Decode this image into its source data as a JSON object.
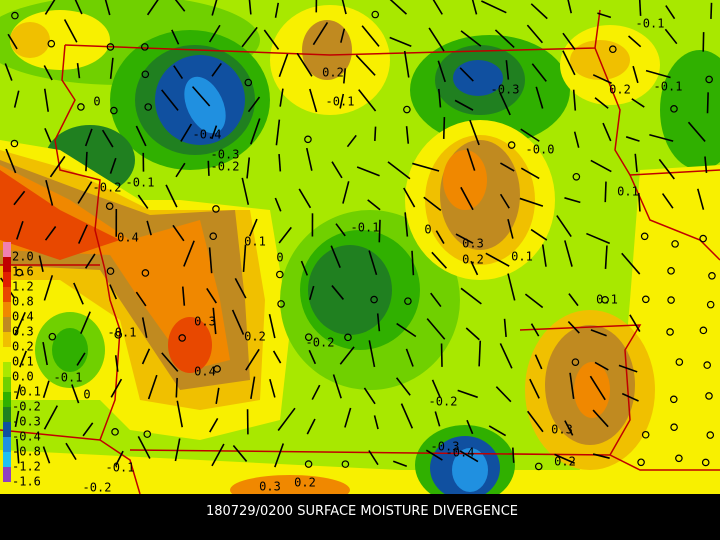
{
  "footer": "180729/0200 SURFACE MOISTURE DIVERGENCE",
  "legend": [
    {
      "label": "2.0",
      "color": "#f080b0"
    },
    {
      "label": "1.6",
      "color": "#c00000"
    },
    {
      "label": "1.2",
      "color": "#e02000"
    },
    {
      "label": "0.8",
      "color": "#e84800"
    },
    {
      "label": "0.4",
      "color": "#f08800"
    },
    {
      "label": "0.3",
      "color": "#c08a20"
    },
    {
      "label": "0.2",
      "color": "#f0c000"
    },
    {
      "label": "0.1",
      "color": "#f8f000"
    },
    {
      "label": "0.0",
      "color": "#a8e800"
    },
    {
      "label": "-0.1",
      "color": "#70d000"
    },
    {
      "label": "-0.2",
      "color": "#30b000"
    },
    {
      "label": "-0.3",
      "color": "#208020"
    },
    {
      "label": "-0.4",
      "color": "#1050a0"
    },
    {
      "label": "-0.8",
      "color": "#2090e0"
    },
    {
      "label": "-1.2",
      "color": "#20c0f0"
    },
    {
      "label": "-1.6",
      "color": "#9040c0"
    }
  ],
  "contour_labels": [
    "-0.1",
    "0.2",
    "-0.1",
    "-0.3",
    "0.2",
    "-0.1",
    "0",
    "-0.4",
    "-0.3",
    "-0.2",
    "-0.2",
    "-0.1",
    "0.1",
    "-0.0",
    "-0.1",
    "0",
    "0.1",
    "0.4",
    "0.3",
    "0.2",
    "0.1",
    "0",
    "0.3",
    "-0.2",
    "0.2",
    "-0.1",
    "0.1",
    "0.4",
    "-0.1",
    "0",
    "-0.2",
    "0.3",
    "-0.3",
    "-0.4",
    "0.2",
    "-0.1",
    "-0.2",
    "0.3",
    "0.2"
  ]
}
